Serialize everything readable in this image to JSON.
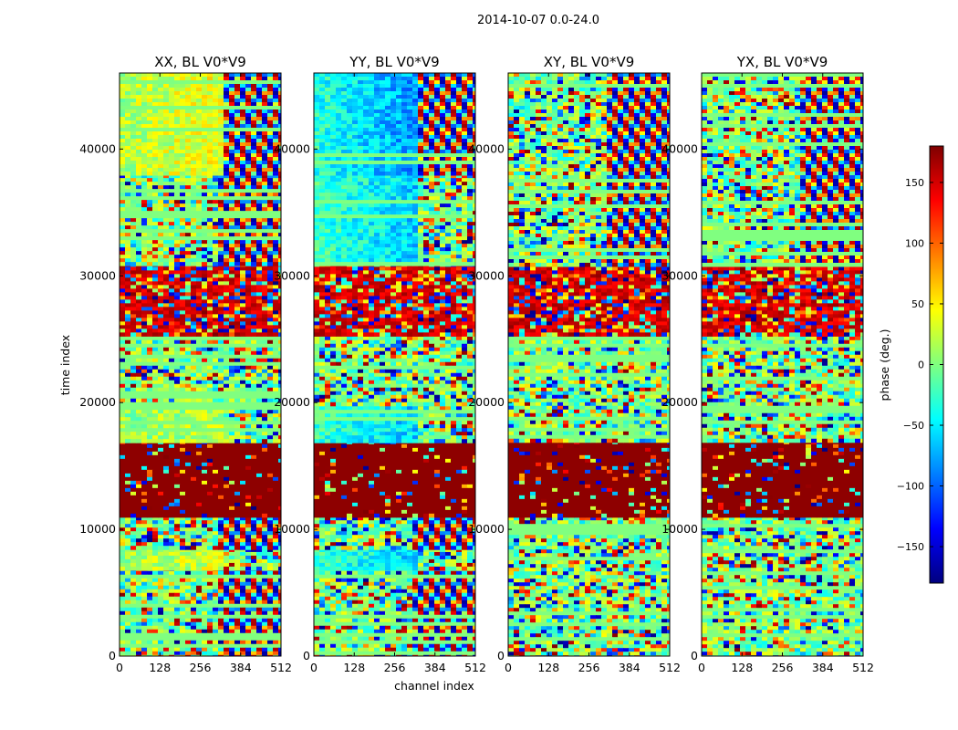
{
  "figure_title": "2014-10-07 0.0-24.0",
  "chart_data": [
    {
      "type": "heatmap",
      "title": "XX, BL V0*V9",
      "xlabel": "",
      "ylabel": "time index",
      "xlim": [
        0,
        512
      ],
      "ylim": [
        0,
        46000
      ],
      "x_ticks": [
        0,
        128,
        256,
        384,
        512
      ],
      "y_ticks": [
        0,
        10000,
        20000,
        30000,
        40000
      ],
      "y_tick_labels": [
        "0",
        "10000",
        "20000",
        "30000",
        "40000"
      ],
      "dominant_value_by_time_band": [
        {
          "t_range": [
            0,
            7000
          ],
          "phase_deg": 0,
          "pattern": "mixed noise with fringes"
        },
        {
          "t_range": [
            7000,
            8500
          ],
          "phase_deg": 30,
          "pattern": "warm gradient"
        },
        {
          "t_range": [
            8500,
            11000
          ],
          "phase_deg": 0,
          "pattern": "fringes right half"
        },
        {
          "t_range": [
            11000,
            17000
          ],
          "phase_deg": 180,
          "pattern": "saturated red"
        },
        {
          "t_range": [
            17000,
            20000
          ],
          "phase_deg": 20,
          "pattern": "gradient"
        },
        {
          "t_range": [
            20000,
            25500
          ],
          "phase_deg": 0,
          "pattern": "noise"
        },
        {
          "t_range": [
            25500,
            31000
          ],
          "phase_deg": 180,
          "pattern": "dark red noise"
        },
        {
          "t_range": [
            31000,
            38000
          ],
          "phase_deg": 0,
          "pattern": "fringes"
        },
        {
          "t_range": [
            38000,
            46000
          ],
          "phase_deg": 40,
          "pattern": "warm gradient with fringes"
        }
      ]
    },
    {
      "type": "heatmap",
      "title": "YY, BL V0*V9",
      "xlabel": "channel index",
      "ylabel": "",
      "xlim": [
        0,
        512
      ],
      "ylim": [
        0,
        46000
      ],
      "x_ticks": [
        0,
        128,
        256,
        384,
        512
      ],
      "y_ticks": [
        0,
        10000,
        20000,
        30000,
        40000
      ],
      "y_tick_labels": [
        "0",
        "10000",
        "20000",
        "30000",
        "40000"
      ],
      "dominant_value_by_time_band": [
        {
          "t_range": [
            0,
            7000
          ],
          "phase_deg": 0,
          "pattern": "mixed noise with fringes"
        },
        {
          "t_range": [
            7000,
            8500
          ],
          "phase_deg": -60,
          "pattern": "cool gradient"
        },
        {
          "t_range": [
            8500,
            11000
          ],
          "phase_deg": 0,
          "pattern": "fringes right"
        },
        {
          "t_range": [
            11000,
            17000
          ],
          "phase_deg": 180,
          "pattern": "saturated red"
        },
        {
          "t_range": [
            17000,
            20000
          ],
          "phase_deg": -60,
          "pattern": "cool gradient"
        },
        {
          "t_range": [
            20000,
            25500
          ],
          "phase_deg": 0,
          "pattern": "noise"
        },
        {
          "t_range": [
            25500,
            31000
          ],
          "phase_deg": 180,
          "pattern": "dark red noise"
        },
        {
          "t_range": [
            31000,
            38000
          ],
          "phase_deg": -60,
          "pattern": "cool gradient"
        },
        {
          "t_range": [
            38000,
            46000
          ],
          "phase_deg": -80,
          "pattern": "cool gradient with fringes"
        }
      ]
    },
    {
      "type": "heatmap",
      "title": "XY, BL V0*V9",
      "xlabel": "",
      "ylabel": "",
      "xlim": [
        0,
        512
      ],
      "ylim": [
        0,
        46000
      ],
      "x_ticks": [
        0,
        128,
        256,
        384,
        512
      ],
      "y_ticks": [
        0,
        10000,
        20000,
        30000,
        40000
      ],
      "y_tick_labels": [
        "0",
        "10000",
        "20000",
        "30000",
        "40000"
      ],
      "dominant_value_by_time_band": [
        {
          "t_range": [
            0,
            11000
          ],
          "phase_deg": 0,
          "pattern": "noise"
        },
        {
          "t_range": [
            11000,
            17000
          ],
          "phase_deg": 180,
          "pattern": "saturated red"
        },
        {
          "t_range": [
            17000,
            25500
          ],
          "phase_deg": 0,
          "pattern": "noise"
        },
        {
          "t_range": [
            25500,
            31000
          ],
          "phase_deg": 180,
          "pattern": "dark red noise"
        },
        {
          "t_range": [
            31000,
            46000
          ],
          "phase_deg": 0,
          "pattern": "fringes and noise"
        }
      ]
    },
    {
      "type": "heatmap",
      "title": "YX, BL V0*V9",
      "xlabel": "",
      "ylabel": "",
      "xlim": [
        0,
        512
      ],
      "ylim": [
        0,
        46000
      ],
      "x_ticks": [
        0,
        128,
        256,
        384,
        512
      ],
      "y_ticks": [
        0,
        10000,
        20000,
        30000,
        40000
      ],
      "y_tick_labels": [
        "0",
        "10000",
        "20000",
        "30000",
        "40000"
      ],
      "dominant_value_by_time_band": [
        {
          "t_range": [
            0,
            11000
          ],
          "phase_deg": 0,
          "pattern": "noise"
        },
        {
          "t_range": [
            11000,
            17000
          ],
          "phase_deg": 180,
          "pattern": "saturated red"
        },
        {
          "t_range": [
            17000,
            25500
          ],
          "phase_deg": 0,
          "pattern": "noise"
        },
        {
          "t_range": [
            25500,
            31000
          ],
          "phase_deg": 180,
          "pattern": "dark red noise"
        },
        {
          "t_range": [
            31000,
            46000
          ],
          "phase_deg": 0,
          "pattern": "fringes and noise"
        }
      ]
    }
  ],
  "colorbar": {
    "label": "phase (deg.)",
    "colormap": "jet",
    "range": [
      -180,
      180
    ],
    "ticks": [
      -150,
      -100,
      -50,
      0,
      50,
      100,
      150
    ],
    "tick_labels": [
      "−150",
      "−100",
      "−50",
      "0",
      "50",
      "100",
      "150"
    ],
    "colormap_stops": [
      "#00007f",
      "#0000ff",
      "#007fff",
      "#00ffff",
      "#7fff7f",
      "#ffff00",
      "#ff7f00",
      "#ff0000",
      "#7f0000"
    ]
  }
}
